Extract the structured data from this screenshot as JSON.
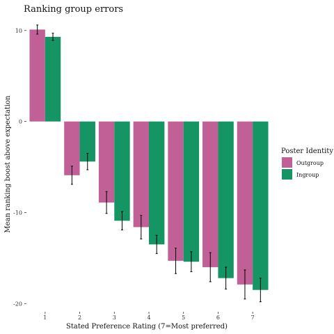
{
  "chart_data": {
    "type": "bar",
    "title": "Ranking group errors",
    "xlabel": "Stated Preference Rating (7=Most preferred)",
    "ylabel": "Mean ranking boost above expectation",
    "categories": [
      "1",
      "2",
      "3",
      "4",
      "5",
      "6",
      "7"
    ],
    "yticks": [
      10,
      0,
      -10,
      -20
    ],
    "ytick_labels": [
      "10",
      "0",
      "-10",
      "-20"
    ],
    "ylim": [
      -21.2,
      10.9
    ],
    "grid": false,
    "legend": {
      "title": "Poster Identity",
      "position": "right"
    },
    "series": [
      {
        "name": "Outgroup",
        "color": "#C06096",
        "values": [
          10.1,
          -5.9,
          -8.9,
          -11.6,
          -15.3,
          -16.0,
          -17.9
        ],
        "error": [
          0.5,
          1.0,
          1.2,
          1.3,
          1.4,
          1.6,
          1.6
        ]
      },
      {
        "name": "Ingroup",
        "color": "#159464",
        "values": [
          9.3,
          -4.4,
          -10.9,
          -13.5,
          -15.4,
          -17.2,
          -18.5
        ],
        "error": [
          0.4,
          0.9,
          1.0,
          1.0,
          1.1,
          1.2,
          1.3
        ]
      }
    ]
  }
}
